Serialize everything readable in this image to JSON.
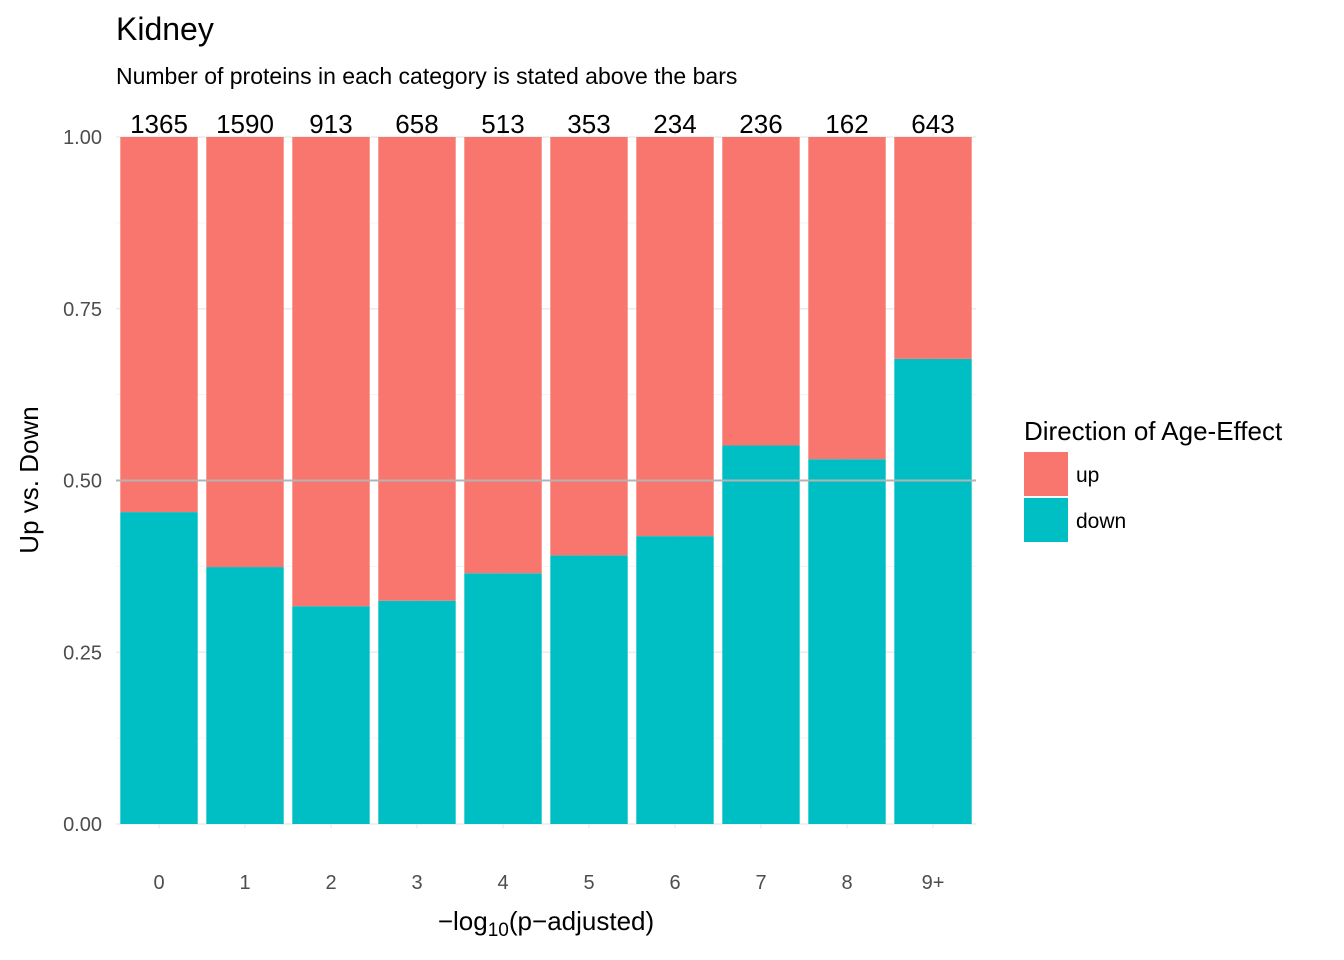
{
  "chart_data": {
    "type": "bar",
    "stacked": "fill",
    "title": "Kidney",
    "subtitle": "Number of proteins in each category is stated above the bars",
    "xlabel_parts": {
      "minus": "−",
      "log": "log",
      "base": "10",
      "open": "(",
      "p": "p",
      "minus2": "−",
      "adj": "adjusted",
      "close": ")"
    },
    "ylabel": "Up vs. Down",
    "ylim": [
      0,
      1
    ],
    "yticks": [
      "0.00",
      "0.25",
      "0.50",
      "0.75",
      "1.00"
    ],
    "ytick_values": [
      0,
      0.25,
      0.5,
      0.75,
      1.0
    ],
    "reference_line": 0.5,
    "categories": [
      "0",
      "1",
      "2",
      "3",
      "4",
      "5",
      "6",
      "7",
      "8",
      "9+"
    ],
    "counts": [
      "1365",
      "1590",
      "913",
      "658",
      "513",
      "353",
      "234",
      "236",
      "162",
      "643"
    ],
    "series": [
      {
        "name": "down",
        "color": "#00BFC4",
        "values": [
          0.454,
          0.374,
          0.317,
          0.325,
          0.365,
          0.391,
          0.419,
          0.551,
          0.531,
          0.677
        ]
      },
      {
        "name": "up",
        "color": "#F8766D",
        "values": [
          0.546,
          0.626,
          0.683,
          0.675,
          0.635,
          0.609,
          0.581,
          0.449,
          0.469,
          0.323
        ]
      }
    ],
    "legend": {
      "title": "Direction of Age-Effect",
      "position": "right",
      "entries": [
        {
          "label": "up",
          "color": "#F8766D"
        },
        {
          "label": "down",
          "color": "#00BFC4"
        }
      ]
    },
    "grid": true,
    "reference_line_color": "#b3b3b3"
  }
}
